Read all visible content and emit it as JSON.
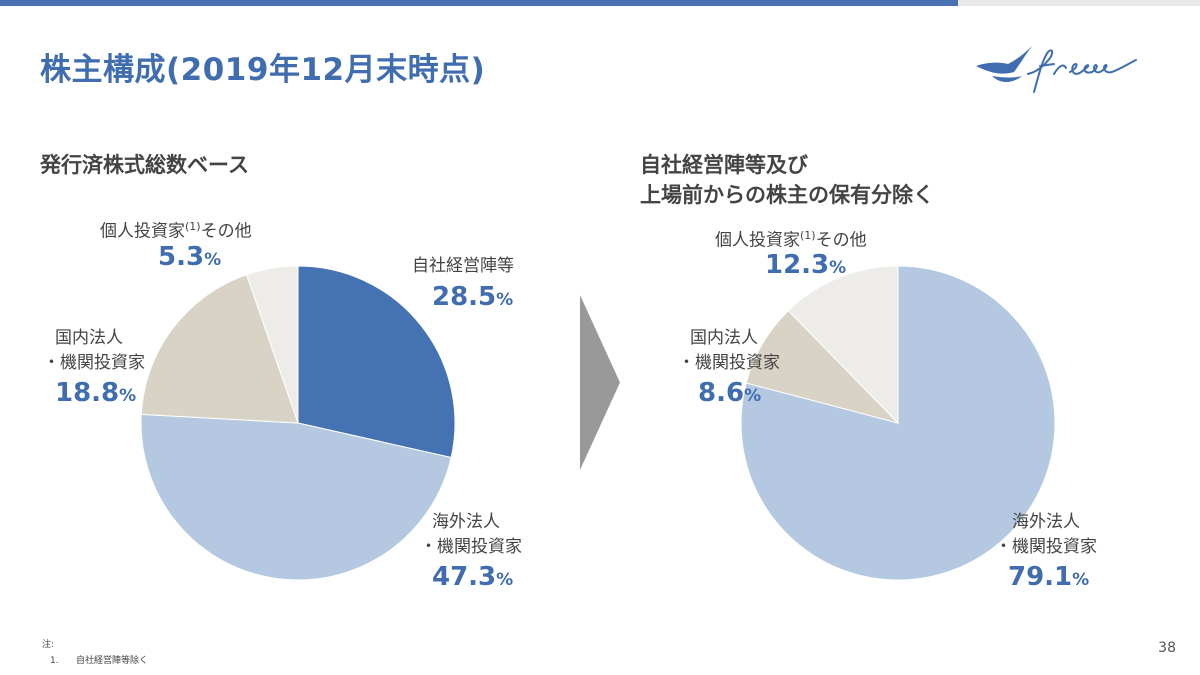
{
  "title": "株主構成(2019年12月末時点)",
  "logo_text": "freee",
  "colors": {
    "accent": "#3f6db0",
    "own": "#4472b3",
    "foreign": "#b4c8e2",
    "domestic": "#d9d3c6",
    "individual": "#eeece8"
  },
  "chart_data": [
    {
      "type": "pie",
      "title": "発行済株式総数ベース",
      "slices": [
        {
          "label": "自社経営陣等",
          "label_lines": [
            "自社経営陣等"
          ],
          "value": 28.5,
          "display": "28.5",
          "unit": "%",
          "color": "#4472b3"
        },
        {
          "label": "海外法人・機関投資家",
          "label_lines": [
            "海外法人",
            "・機関投資家"
          ],
          "value": 47.3,
          "display": "47.3",
          "unit": "%",
          "color": "#b4c8e2"
        },
        {
          "label": "国内法人・機関投資家",
          "label_lines": [
            "国内法人",
            "・機関投資家"
          ],
          "value": 18.8,
          "display": "18.8",
          "unit": "%",
          "color": "#d9d3c6"
        },
        {
          "label": "個人投資家(1)その他",
          "label_lines": [
            "個人投資家(1)その他"
          ],
          "label_main": "個人投資家",
          "label_sup": "(1)",
          "label_tail": "その他",
          "value": 5.3,
          "display": "5.3",
          "unit": "%",
          "color": "#eeece8"
        }
      ]
    },
    {
      "type": "pie",
      "title_lines": [
        "自社経営陣等及び",
        "上場前からの株主の保有分除く"
      ],
      "slices": [
        {
          "label": "海外法人・機関投資家",
          "label_lines": [
            "海外法人",
            "・機関投資家"
          ],
          "value": 79.1,
          "display": "79.1",
          "unit": "%",
          "color": "#b4c8e2"
        },
        {
          "label": "国内法人・機関投資家",
          "label_lines": [
            "国内法人",
            "・機関投資家"
          ],
          "value": 8.6,
          "display": "8.6",
          "unit": "%",
          "color": "#d9d3c6"
        },
        {
          "label": "個人投資家(1)その他",
          "label_main": "個人投資家",
          "label_sup": "(1)",
          "label_tail": "その他",
          "value": 12.3,
          "display": "12.3",
          "unit": "%",
          "color": "#eeece8"
        }
      ]
    }
  ],
  "notes": {
    "heading": "注:",
    "items": [
      {
        "num": "1.",
        "text": "自社経営陣等除く"
      }
    ]
  },
  "page_number": "38"
}
